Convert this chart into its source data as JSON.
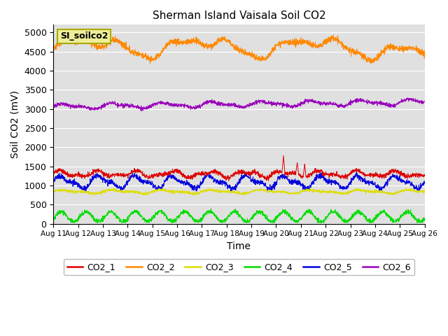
{
  "title": "Sherman Island Vaisala Soil CO2",
  "xlabel": "Time",
  "ylabel": "Soil CO2 (mV)",
  "background_color": "#e0e0e0",
  "legend_label": "SI_soilco2",
  "ylim": [
    0,
    5200
  ],
  "yticks": [
    0,
    500,
    1000,
    1500,
    2000,
    2500,
    3000,
    3500,
    4000,
    4500,
    5000
  ],
  "x_labels": [
    "Aug 11",
    "Aug 12",
    "Aug 13",
    "Aug 14",
    "Aug 15",
    "Aug 16",
    "Aug 17",
    "Aug 18",
    "Aug 19",
    "Aug 20",
    "Aug 21",
    "Aug 22",
    "Aug 23",
    "Aug 24",
    "Aug 25",
    "Aug 26"
  ],
  "series": {
    "CO2_1": {
      "color": "#dd0000"
    },
    "CO2_2": {
      "color": "#ff8800"
    },
    "CO2_3": {
      "color": "#dddd00"
    },
    "CO2_4": {
      "color": "#00dd00"
    },
    "CO2_5": {
      "color": "#0000dd"
    },
    "CO2_6": {
      "color": "#9900bb"
    }
  },
  "figsize": [
    6.4,
    4.8
  ],
  "dpi": 100
}
